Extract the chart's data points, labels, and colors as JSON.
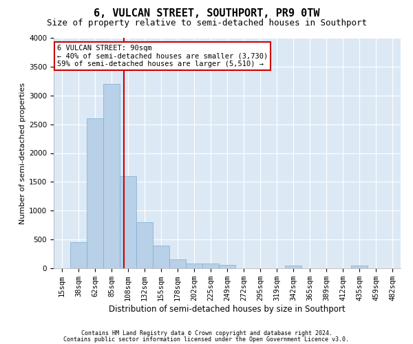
{
  "title1": "6, VULCAN STREET, SOUTHPORT, PR9 0TW",
  "title2": "Size of property relative to semi-detached houses in Southport",
  "xlabel": "Distribution of semi-detached houses by size in Southport",
  "ylabel": "Number of semi-detached properties",
  "footnote1": "Contains HM Land Registry data © Crown copyright and database right 2024.",
  "footnote2": "Contains public sector information licensed under the Open Government Licence v3.0.",
  "categories": [
    "15sqm",
    "38sqm",
    "62sqm",
    "85sqm",
    "108sqm",
    "132sqm",
    "155sqm",
    "178sqm",
    "202sqm",
    "225sqm",
    "249sqm",
    "272sqm",
    "295sqm",
    "319sqm",
    "342sqm",
    "365sqm",
    "389sqm",
    "412sqm",
    "435sqm",
    "459sqm",
    "482sqm"
  ],
  "values": [
    5,
    450,
    2600,
    3200,
    1600,
    800,
    400,
    150,
    80,
    80,
    60,
    5,
    5,
    5,
    50,
    5,
    5,
    5,
    50,
    5,
    5
  ],
  "bar_color": "#b8d0e8",
  "bar_edge_color": "#7aaed0",
  "highlight_color": "#cc0000",
  "annotation_text": "6 VULCAN STREET: 90sqm\n← 40% of semi-detached houses are smaller (3,730)\n59% of semi-detached houses are larger (5,510) →",
  "annotation_box_color": "#ffffff",
  "annotation_box_edge": "#cc0000",
  "ylim": [
    0,
    4000
  ],
  "plot_bg_color": "#dce9f5",
  "grid_color": "#ffffff",
  "title_fontsize": 11,
  "subtitle_fontsize": 9,
  "tick_fontsize": 7.5,
  "ylabel_fontsize": 8,
  "xlabel_fontsize": 8.5,
  "annot_fontsize": 7.5,
  "footnote_fontsize": 6
}
